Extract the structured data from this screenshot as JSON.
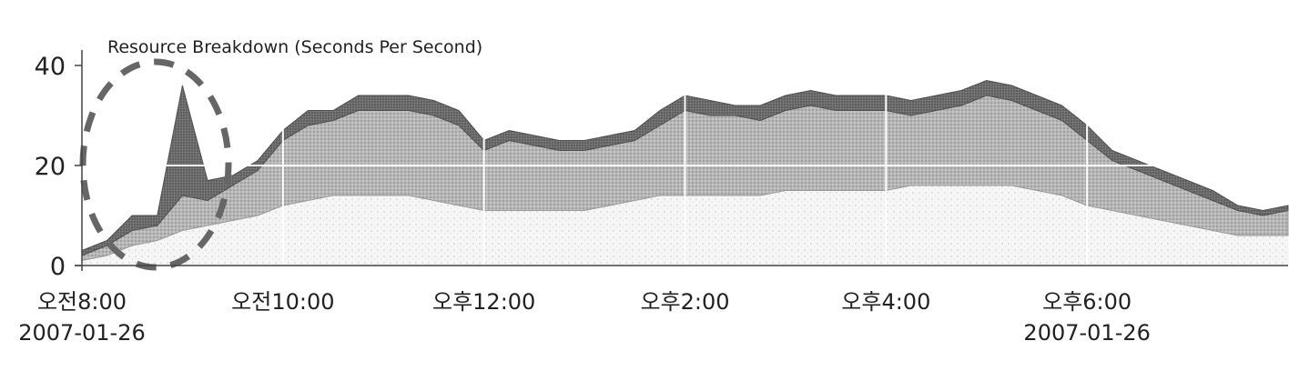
{
  "chart_data": {
    "type": "area",
    "title": "Resource Breakdown (Seconds Per Second)",
    "xlabel": "",
    "ylabel": "",
    "ylim": [
      0,
      40
    ],
    "yticks": [
      0,
      20,
      40
    ],
    "xlim": [
      "08:00",
      "20:00"
    ],
    "xticks": [
      {
        "x": "08:00",
        "label": "오전8:00",
        "date": "2007-01-26"
      },
      {
        "x": "10:00",
        "label": "오전10:00",
        "date": ""
      },
      {
        "x": "12:00",
        "label": "오후12:00",
        "date": ""
      },
      {
        "x": "14:00",
        "label": "오후2:00",
        "date": ""
      },
      {
        "x": "16:00",
        "label": "오후4:00",
        "date": ""
      },
      {
        "x": "18:00",
        "label": "오후6:00",
        "date": "2007-01-26"
      }
    ],
    "grid": true,
    "stacked": true,
    "legend": "none",
    "annotation": "dashed ellipse around early spike",
    "x": [
      "08:00",
      "08:15",
      "08:30",
      "08:45",
      "09:00",
      "09:15",
      "09:30",
      "09:45",
      "10:00",
      "10:15",
      "10:30",
      "10:45",
      "11:00",
      "11:15",
      "11:30",
      "11:45",
      "12:00",
      "12:15",
      "12:30",
      "12:45",
      "13:00",
      "13:15",
      "13:30",
      "13:45",
      "14:00",
      "14:15",
      "14:30",
      "14:45",
      "15:00",
      "15:15",
      "15:30",
      "15:45",
      "16:00",
      "16:15",
      "16:30",
      "16:45",
      "17:00",
      "17:15",
      "17:30",
      "17:45",
      "18:00",
      "18:15",
      "18:30",
      "18:45",
      "19:00",
      "19:15",
      "19:30",
      "19:45",
      "20:00"
    ],
    "series": [
      {
        "values": [
          1,
          2,
          4,
          5,
          7,
          8,
          9,
          10,
          12,
          13,
          14,
          14,
          14,
          14,
          13,
          12,
          11,
          11,
          11,
          11,
          11,
          12,
          13,
          14,
          14,
          14,
          14,
          14,
          15,
          15,
          15,
          15,
          15,
          16,
          16,
          16,
          16,
          16,
          15,
          14,
          12,
          11,
          10,
          9,
          8,
          7,
          6,
          6,
          6
        ]
      },
      {
        "values": [
          1,
          2,
          3,
          3,
          7,
          5,
          7,
          9,
          13,
          15,
          15,
          17,
          17,
          17,
          17,
          16,
          12,
          14,
          13,
          12,
          12,
          12,
          12,
          14,
          17,
          16,
          16,
          15,
          16,
          17,
          16,
          16,
          16,
          14,
          15,
          16,
          18,
          17,
          16,
          15,
          13,
          10,
          9,
          8,
          7,
          6,
          5,
          4,
          5
        ]
      },
      {
        "values": [
          1,
          1,
          3,
          2,
          22,
          4,
          2,
          2,
          2,
          3,
          2,
          3,
          3,
          3,
          3,
          3,
          2,
          2,
          2,
          2,
          2,
          2,
          2,
          3,
          3,
          3,
          2,
          3,
          3,
          3,
          3,
          3,
          3,
          3,
          3,
          3,
          3,
          3,
          3,
          3,
          3,
          2,
          2,
          2,
          2,
          2,
          1,
          1,
          1
        ]
      }
    ],
    "colors": {
      "series1": "#f4f4f4",
      "series2": "#b3b3b3",
      "series3": "#6b6b6b",
      "grid": "#ffffff",
      "axis": "#444444",
      "annotation": "#666666"
    }
  }
}
